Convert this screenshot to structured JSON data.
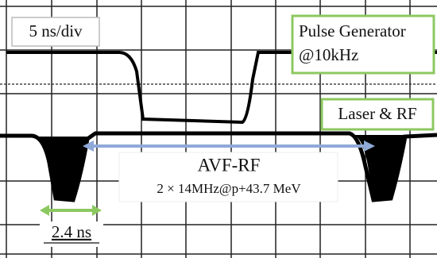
{
  "timebase": "5 ns/div",
  "pulse_generator": {
    "line1": "Pulse Generator",
    "line2": "@10kHz"
  },
  "laser_rf": "Laser & RF",
  "avf_rf": {
    "title": "AVF-RF",
    "detail": "2 × 14MHz@p+43.7 MeV"
  },
  "pulse_width": "2.4 ns"
}
